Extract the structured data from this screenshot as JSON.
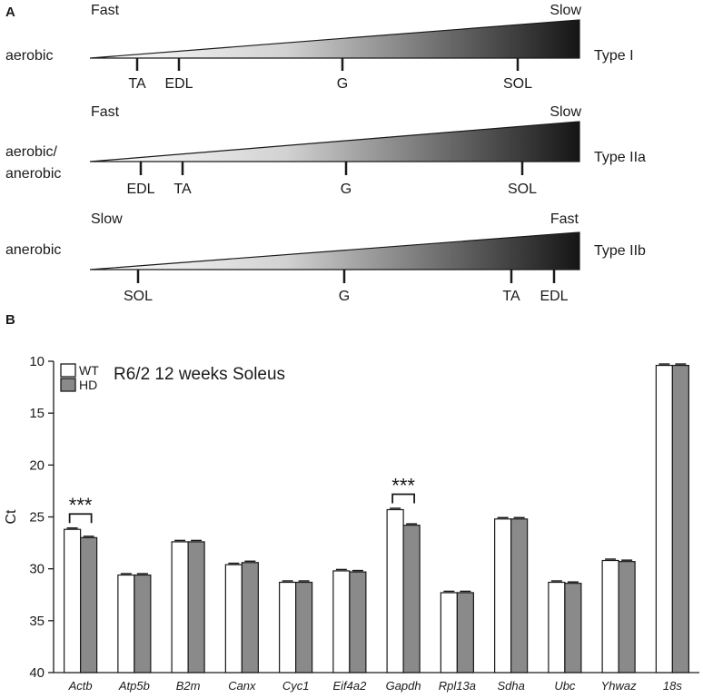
{
  "panel_a": {
    "label": "A",
    "rows": [
      {
        "left_label_lines": [
          "aerobic"
        ],
        "right_label": "Type I",
        "start_label": "Fast",
        "end_label": "Slow",
        "muscles": [
          "TA",
          "EDL",
          "G",
          "SOL"
        ]
      },
      {
        "left_label_lines": [
          "aerobic/",
          "anerobic"
        ],
        "right_label": "Type IIa",
        "start_label": "Fast",
        "end_label": "Slow",
        "muscles": [
          "EDL",
          "TA",
          "G",
          "SOL"
        ]
      },
      {
        "left_label_lines": [
          "anerobic"
        ],
        "right_label": "Type IIb",
        "start_label": "Slow",
        "end_label": "Fast",
        "muscles": [
          "SOL",
          "G",
          "TA",
          "EDL"
        ]
      }
    ]
  },
  "panel_b": {
    "label": "B"
  },
  "chart_data": {
    "type": "bar",
    "title": "R6/2 12 weeks Soleus",
    "xlabel": "",
    "ylabel": "Ct",
    "ylim": [
      40,
      10
    ],
    "y_inverted": true,
    "y_ticks": [
      10,
      15,
      20,
      25,
      30,
      35,
      40
    ],
    "categories": [
      "Actb",
      "Atp5b",
      "B2m",
      "Canx",
      "Cyc1",
      "Eif4a2",
      "Gapdh",
      "Rpl13a",
      "Sdha",
      "Ubc",
      "Yhwaz",
      "18s"
    ],
    "series": [
      {
        "name": "WT",
        "color": "#ffffff",
        "values": [
          26.2,
          30.6,
          27.4,
          29.6,
          31.3,
          30.2,
          24.3,
          32.3,
          25.2,
          31.3,
          29.2,
          10.4
        ]
      },
      {
        "name": "HD",
        "color": "#8a8a8a",
        "values": [
          27.0,
          30.6,
          27.4,
          29.4,
          31.3,
          30.3,
          25.8,
          32.3,
          25.2,
          31.4,
          29.3,
          10.4
        ]
      }
    ],
    "annotations": [
      {
        "category": "Actb",
        "text": "***"
      },
      {
        "category": "Gapdh",
        "text": "***"
      }
    ],
    "legend_position": "top-left"
  }
}
